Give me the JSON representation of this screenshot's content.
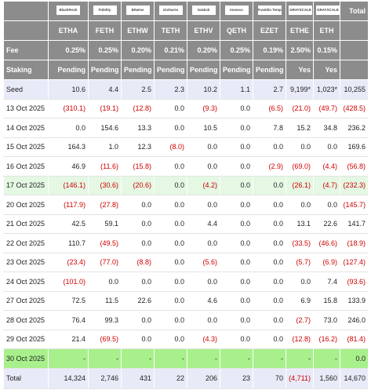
{
  "header": {
    "logos": [
      "BlackRock",
      "Fidelity",
      "Bitwise",
      "21shares",
      "VanEck",
      "Invesco",
      "Franklin Templeton",
      "GRAYSCALE",
      "GRAYSCALE"
    ],
    "total_label": "Total",
    "tickers": [
      "ETHA",
      "FETH",
      "ETHW",
      "TETH",
      "ETHV",
      "QETH",
      "EZET",
      "ETHE",
      "ETH"
    ]
  },
  "header_rows": [
    {
      "label": "Fee",
      "values": [
        "0.25%",
        "0.25%",
        "0.20%",
        "0.21%",
        "0.20%",
        "0.25%",
        "0.19%",
        "2.50%",
        "0.15%"
      ]
    },
    {
      "label": "Staking",
      "values": [
        "Pending",
        "Pending",
        "Pending",
        "Pending",
        "Pending",
        "Pending",
        "Pending",
        "Yes",
        "Yes"
      ]
    }
  ],
  "rows": [
    {
      "label": "Seed",
      "values": [
        "10.6",
        "4.4",
        "2.5",
        "2.3",
        "10.2",
        "1.1",
        "2.7",
        "9,199*",
        "1,023*",
        "10,255"
      ]
    },
    {
      "label": "13 Oct 2025",
      "values": [
        "(310.1)",
        "(19.1)",
        "(12.8)",
        "0.0",
        "(9.3)",
        "0.0",
        "(6.5)",
        "(21.0)",
        "(49.7)",
        "(428.5)"
      ]
    },
    {
      "label": "14 Oct 2025",
      "values": [
        "0.0",
        "154.6",
        "13.3",
        "0.0",
        "10.5",
        "0.0",
        "7.8",
        "15.2",
        "34.8",
        "236.2"
      ]
    },
    {
      "label": "15 Oct 2025",
      "values": [
        "164.3",
        "1.0",
        "12.3",
        "(8.0)",
        "0.0",
        "0.0",
        "0.0",
        "0.0",
        "0.0",
        "169.6"
      ]
    },
    {
      "label": "16 Oct 2025",
      "values": [
        "46.9",
        "(11.6)",
        "(15.8)",
        "0.0",
        "0.0",
        "0.0",
        "(2.9)",
        "(69.0)",
        "(4.4)",
        "(56.8)"
      ]
    },
    {
      "label": "17 Oct 2025",
      "values": [
        "(146.1)",
        "(30.6)",
        "(20.6)",
        "0.0",
        "(4.2)",
        "0.0",
        "0.0",
        "(26.1)",
        "(4.7)",
        "(232.3)"
      ]
    },
    {
      "label": "20 Oct 2025",
      "values": [
        "(117.9)",
        "(27.8)",
        "0.0",
        "0.0",
        "0.0",
        "0.0",
        "0.0",
        "0.0",
        "0.0",
        "(145.7)"
      ]
    },
    {
      "label": "21 Oct 2025",
      "values": [
        "42.5",
        "59.1",
        "0.0",
        "0.0",
        "4.4",
        "0.0",
        "0.0",
        "13.1",
        "22.6",
        "141.7"
      ]
    },
    {
      "label": "22 Oct 2025",
      "values": [
        "110.7",
        "(49.5)",
        "0.0",
        "0.0",
        "0.0",
        "0.0",
        "0.0",
        "(33.5)",
        "(46.6)",
        "(18.9)"
      ]
    },
    {
      "label": "23 Oct 2025",
      "values": [
        "(23.4)",
        "(77.0)",
        "(8.8)",
        "0.0",
        "(5.6)",
        "0.0",
        "0.0",
        "(5.7)",
        "(6.9)",
        "(127.4)"
      ]
    },
    {
      "label": "24 Oct 2025",
      "values": [
        "(101.0)",
        "0.0",
        "0.0",
        "0.0",
        "0.0",
        "0.0",
        "0.0",
        "0.0",
        "7.4",
        "(93.6)"
      ]
    },
    {
      "label": "27 Oct 2025",
      "values": [
        "72.5",
        "11.5",
        "22.6",
        "0.0",
        "4.6",
        "0.0",
        "0.0",
        "6.9",
        "15.8",
        "133.9"
      ]
    },
    {
      "label": "28 Oct 2025",
      "values": [
        "76.4",
        "99.3",
        "0.0",
        "0.0",
        "0.0",
        "0.0",
        "0.0",
        "(2.7)",
        "73.0",
        "246.0"
      ]
    },
    {
      "label": "29 Oct 2025",
      "values": [
        "21.4",
        "(69.5)",
        "0.0",
        "0.0",
        "(4.3)",
        "0.0",
        "0.0",
        "(12.8)",
        "(16.2)",
        "(81.4)"
      ]
    },
    {
      "label": "30 Oct 2025",
      "values": [
        "-",
        "-",
        "-",
        "-",
        "-",
        "-",
        "-",
        "-",
        "-",
        "0.0"
      ]
    },
    {
      "label": "Total",
      "values": [
        "14,324",
        "2,746",
        "431",
        "22",
        "206",
        "23",
        "70",
        "(4,711)",
        "1,560",
        "14,670"
      ]
    }
  ]
}
